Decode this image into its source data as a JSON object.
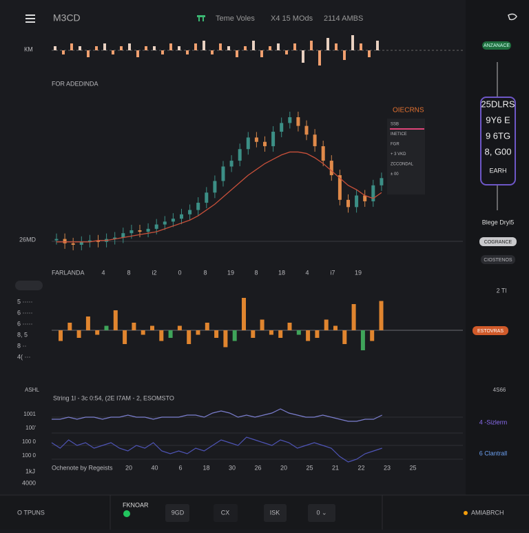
{
  "header": {
    "brand": "M3CD",
    "ticker": "Teme Voles",
    "stat1": "X4 15 MOds",
    "stat2": "2114 AMBS"
  },
  "top_strip": {
    "label": "КМ",
    "badge": "ANZANACE",
    "values": [
      1,
      -1,
      2,
      1,
      -2,
      1,
      2,
      -1,
      1,
      2,
      -2,
      1,
      1,
      -1,
      2,
      1,
      -1,
      2,
      3,
      -1,
      2,
      1,
      -2,
      1,
      3,
      -2,
      1,
      2,
      -1,
      2,
      -4,
      3,
      -5,
      4,
      2,
      -3,
      5,
      2,
      -2,
      3
    ]
  },
  "main_chart": {
    "title": "FOR ADEDINDA",
    "left_label": "26MD",
    "prices": [
      8,
      5,
      4,
      6,
      7,
      6,
      8,
      9,
      12,
      14,
      13,
      15,
      18,
      20,
      22,
      25,
      28,
      33,
      40,
      48,
      58,
      62,
      70,
      78,
      75,
      72,
      82,
      88,
      92,
      86,
      80,
      72,
      62,
      52,
      35,
      30,
      38,
      34,
      45,
      50
    ],
    "ma": [
      6,
      6,
      6,
      6,
      6,
      7,
      7,
      8,
      9,
      10,
      11,
      12,
      13,
      15,
      17,
      19,
      21,
      24,
      28,
      32,
      37,
      42,
      47,
      52,
      56,
      60,
      63,
      66,
      68,
      68,
      67,
      64,
      60,
      55,
      50,
      45,
      42,
      38,
      36,
      40
    ],
    "tooltip": {
      "title": "OIECRNS",
      "rows": [
        "SSB",
        "INETICE",
        "FGR",
        "+ 3 VKD",
        "ZCCONDAL",
        "± 00"
      ]
    },
    "axis_title": "FARLANDA",
    "axis_labels": [
      "4",
      "8",
      "i2",
      "0",
      "8",
      "19",
      "8",
      "18",
      "4",
      "i7",
      "19"
    ]
  },
  "side_panel": {
    "box": [
      "25DLRS",
      "9Y6 E",
      "9 6TG",
      "8, G00",
      "EARH"
    ],
    "caption": "Blege Dryl5",
    "button1": "COGRANCE",
    "button2": "CIOSTENOS",
    "label1": "2 Tl",
    "badge": "ESTOVRAS",
    "label2": "4S66",
    "legend1": "4 -Sizlerm",
    "legend2": "6 Clantrall"
  },
  "volume": {
    "left_labels": [
      "5 ·····",
      "6 ·····",
      "6 ·····",
      "8, 5",
      "8 ··",
      "4( ···"
    ],
    "values": [
      -3,
      2,
      -2,
      4,
      -1,
      1,
      6,
      -4,
      2,
      -1,
      1,
      -3,
      -2,
      1,
      -4,
      -1,
      2,
      -2,
      -5,
      -3,
      10,
      -2,
      3,
      -1,
      -2,
      2,
      -1,
      -3,
      -2,
      3,
      1,
      -4,
      8,
      -6,
      -3,
      9
    ]
  },
  "indicator": {
    "label": "ASHL",
    "title": "String 1l - 3c 0:54, (2E I7AM - 2, ESOMSTO",
    "left_labels": [
      "1001",
      "100'",
      "100 0",
      "100 0"
    ],
    "line_a": [
      2,
      2,
      3,
      2,
      3,
      3,
      2,
      3,
      3,
      4,
      3,
      3,
      2,
      3,
      3,
      3,
      4,
      4,
      3,
      5,
      6,
      5,
      3,
      4,
      3,
      4,
      5,
      7,
      5,
      4,
      3,
      3,
      4,
      3,
      2,
      1,
      1,
      2,
      2,
      4
    ],
    "line_b": [
      5,
      3,
      6,
      4,
      5,
      3,
      4,
      5,
      3,
      2,
      4,
      3,
      5,
      2,
      1,
      2,
      1,
      3,
      2,
      4,
      6,
      5,
      4,
      7,
      6,
      5,
      4,
      6,
      5,
      3,
      4,
      5,
      4,
      3,
      0,
      -2,
      -1,
      1,
      2,
      3
    ],
    "axis_title": "Ochenote by Regeists",
    "axis_labels": [
      "20",
      "40",
      "6",
      "18",
      "30",
      "26",
      "20",
      "25",
      "21",
      "22",
      "23",
      "25"
    ],
    "bottom1": "1kJ",
    "bottom2": "4000"
  },
  "footer": {
    "left": "O TPUNS",
    "name": "FKNOAR",
    "buttons": [
      "9GD",
      "CX",
      "ISK",
      "0 ⌄"
    ],
    "right": "AMIABRCH"
  }
}
